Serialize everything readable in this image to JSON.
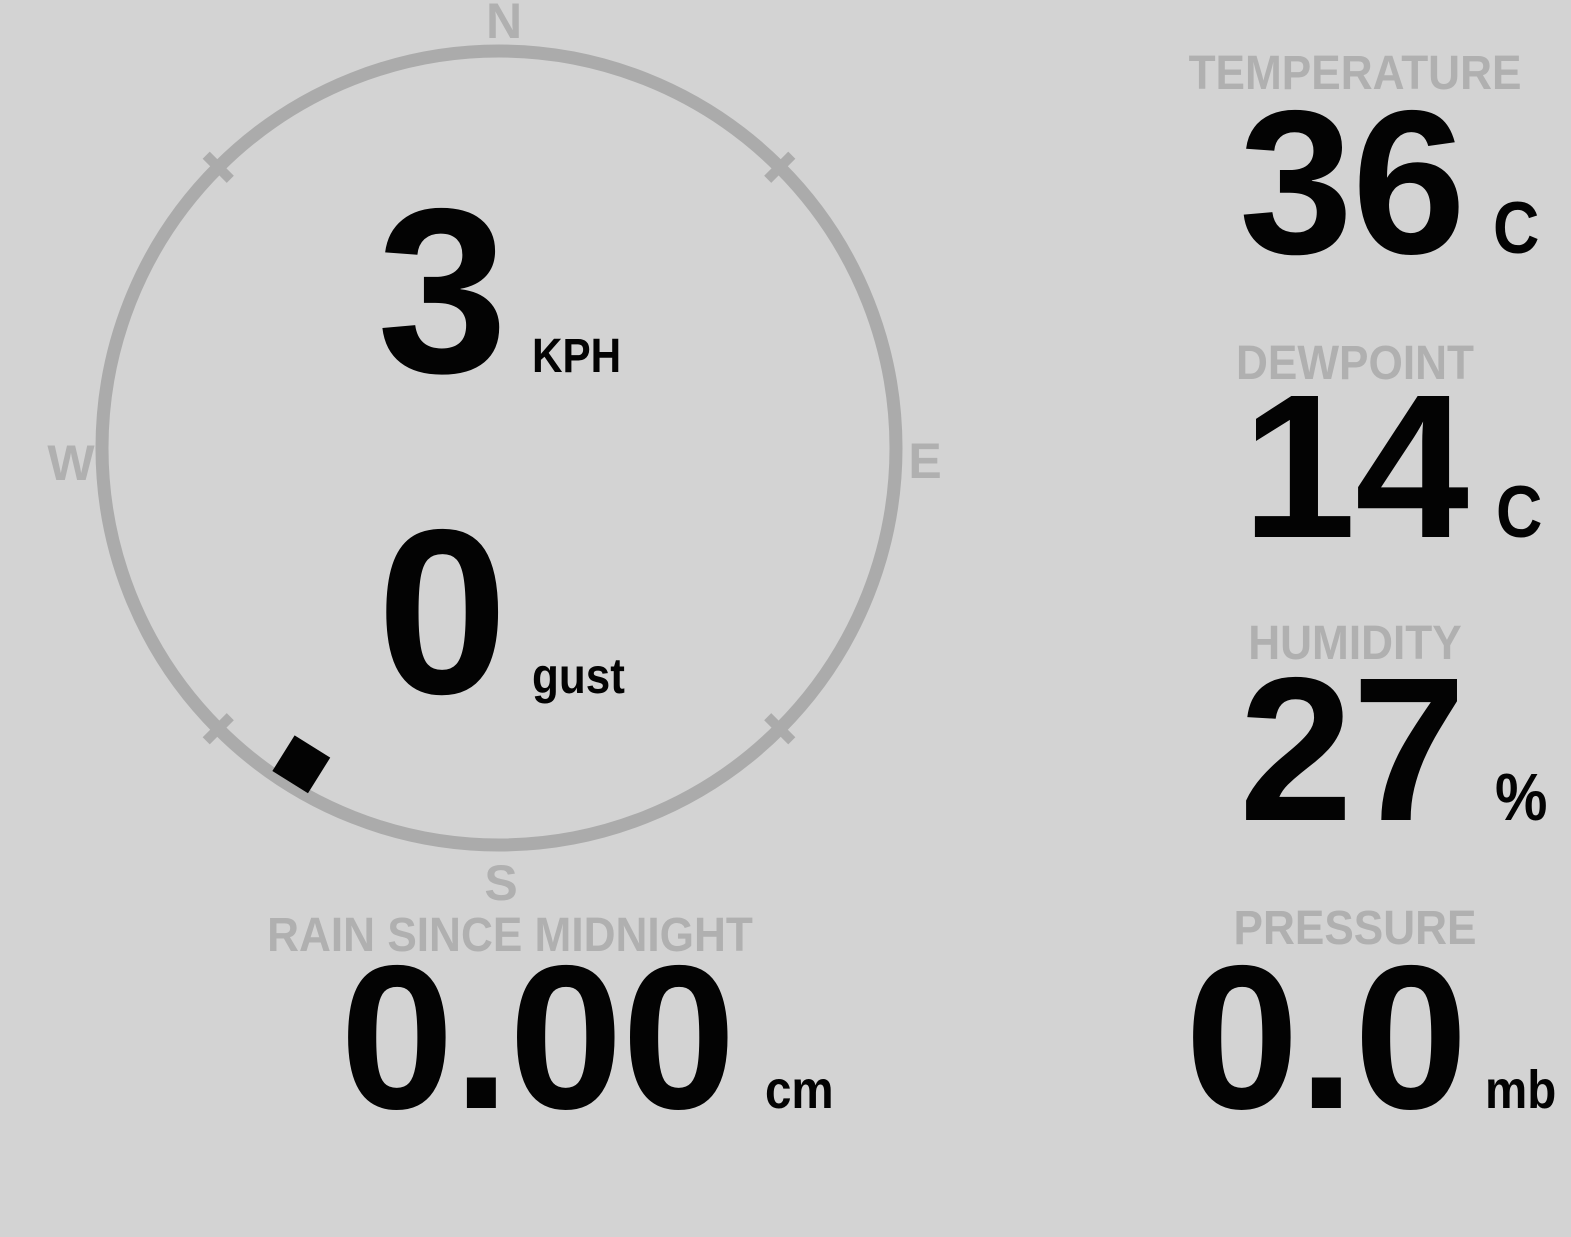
{
  "theme": {
    "background": "#d3d3d3",
    "ring_color": "#ababab",
    "label_color": "#b0b0b0",
    "value_color": "#030303"
  },
  "compass": {
    "cardinals": {
      "north": "N",
      "east": "E",
      "south": "S",
      "west": "W"
    },
    "wind_direction_deg": 212,
    "speed": {
      "value": "3",
      "unit": "KPH"
    },
    "gust": {
      "value": "0",
      "unit": "gust"
    }
  },
  "metrics": {
    "temperature": {
      "label": "TEMPERATURE",
      "value": "36",
      "unit": "C"
    },
    "dewpoint": {
      "label": "DEWPOINT",
      "value": "14",
      "unit": "C"
    },
    "humidity": {
      "label": "HUMIDITY",
      "value": "27",
      "unit": "%"
    },
    "pressure": {
      "label": "PRESSURE",
      "value": "0.0",
      "unit": "mb"
    },
    "rain": {
      "label": "RAIN SINCE MIDNIGHT",
      "value": "0.00",
      "unit": "cm"
    }
  }
}
